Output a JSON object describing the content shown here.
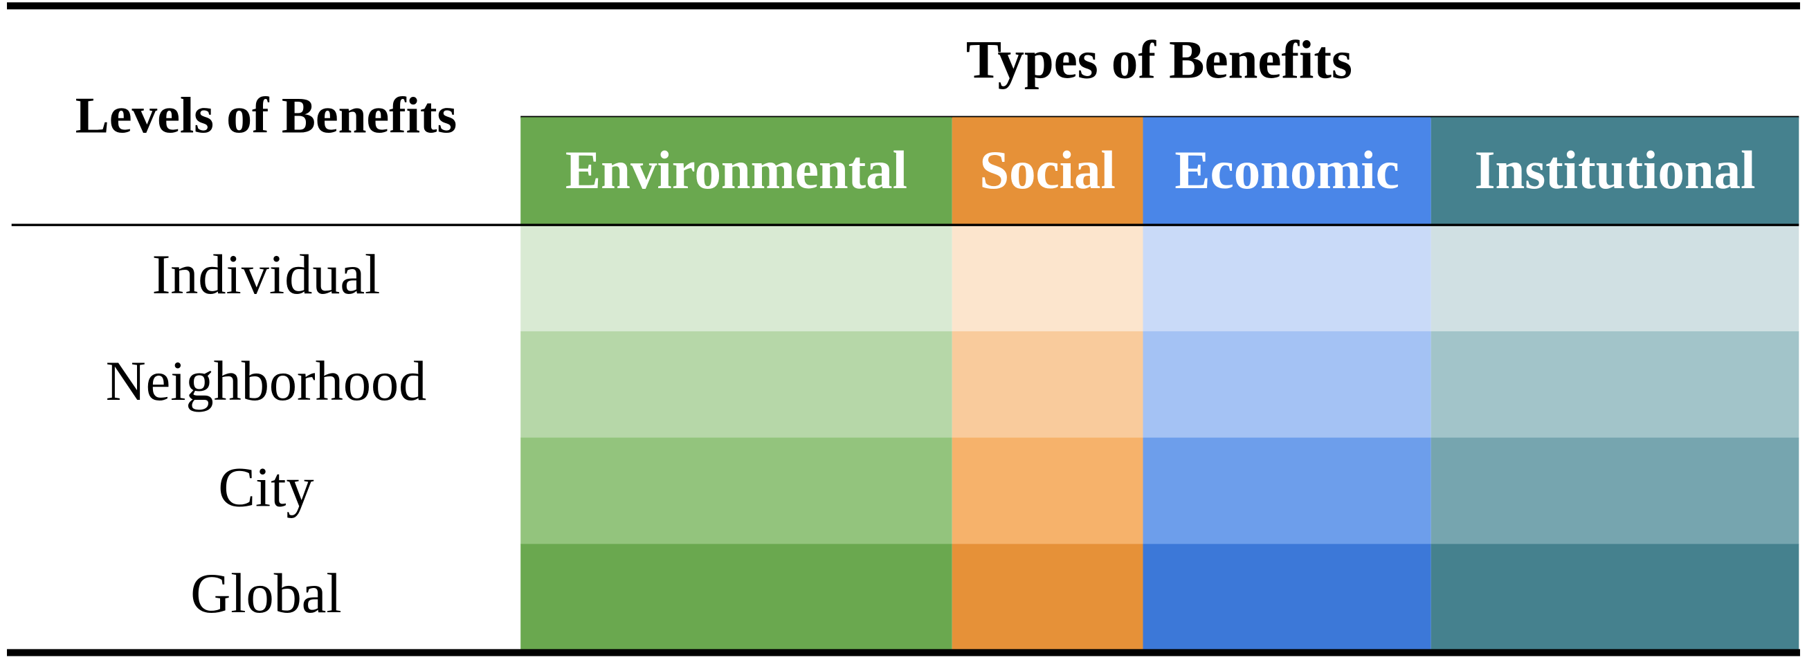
{
  "header": {
    "title": "Types of Benefits",
    "row_header": "Levels of Benefits"
  },
  "table": {
    "columns": [
      {
        "label": "Environmental",
        "color": "#6aa84f",
        "shades": [
          "#d9ead3",
          "#b6d7a8",
          "#93c47d",
          "#6aa84f"
        ]
      },
      {
        "label": "Social",
        "color": "#e69138",
        "shades": [
          "#fce5cd",
          "#f9cb9c",
          "#f6b26b",
          "#e69138"
        ]
      },
      {
        "label": "Economic",
        "color": "#4a86e8",
        "shades": [
          "#c9daf8",
          "#a4c2f4",
          "#6d9eeb",
          "#3c78d8"
        ]
      },
      {
        "label": "Institutional",
        "color": "#45818e",
        "shades": [
          "#d0e0e3",
          "#a2c4c9",
          "#76a5af",
          "#45818e"
        ]
      }
    ],
    "rows": [
      "Individual",
      "Neighborhood",
      "City",
      "Global"
    ]
  }
}
